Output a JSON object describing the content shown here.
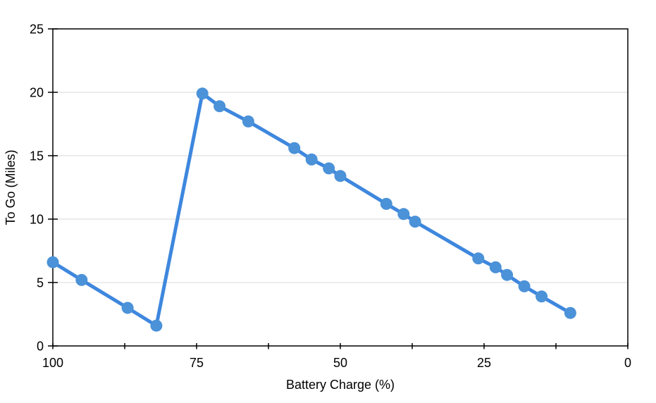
{
  "page": {
    "background": "#ffffff"
  },
  "chart_data": {
    "type": "line",
    "title": "",
    "xlabel": "Battery Charge (%)",
    "ylabel": "To Go (Miles)",
    "legend": "none",
    "grid": "horizontal-only",
    "frame": "full-box",
    "x_axis": {
      "min": 0,
      "max": 100,
      "reversed": true,
      "tick_labels": [
        100,
        75,
        50,
        25,
        0
      ],
      "minor_tick_step": 12.5
    },
    "y_axis": {
      "min": 0,
      "max": 25,
      "tick_labels": [
        0,
        5,
        10,
        15,
        20,
        25
      ],
      "gridlines": [
        5,
        10,
        15,
        20
      ]
    },
    "colors": {
      "line": "#3E87DE",
      "marker": "#4B92D8",
      "axis": "#000000",
      "gridline": "#D9D9D9"
    },
    "series": [
      {
        "name": "To Go (Miles)",
        "points": [
          {
            "x": 100,
            "y": 6.6
          },
          {
            "x": 95,
            "y": 5.2
          },
          {
            "x": 87,
            "y": 3.0
          },
          {
            "x": 82,
            "y": 1.6
          },
          {
            "x": 74,
            "y": 19.9
          },
          {
            "x": 71,
            "y": 18.9
          },
          {
            "x": 66,
            "y": 17.7
          },
          {
            "x": 58,
            "y": 15.6
          },
          {
            "x": 55,
            "y": 14.7
          },
          {
            "x": 52,
            "y": 14.0
          },
          {
            "x": 50,
            "y": 13.4
          },
          {
            "x": 42,
            "y": 11.2
          },
          {
            "x": 39,
            "y": 10.4
          },
          {
            "x": 37,
            "y": 9.8
          },
          {
            "x": 26,
            "y": 6.9
          },
          {
            "x": 23,
            "y": 6.2
          },
          {
            "x": 21,
            "y": 5.6
          },
          {
            "x": 18,
            "y": 4.7
          },
          {
            "x": 15,
            "y": 3.9
          },
          {
            "x": 10,
            "y": 2.6
          }
        ]
      }
    ]
  }
}
